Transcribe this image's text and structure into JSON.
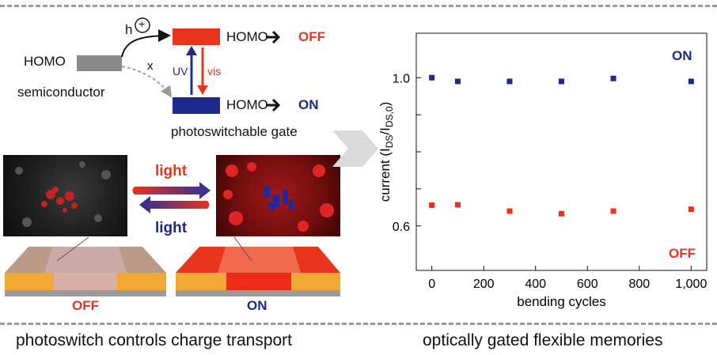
{
  "left_panel": {
    "h_label": "h",
    "plus_symbol": "+",
    "homo_semi": "HOMO",
    "semiconductor": "semiconductor",
    "x_label": "x",
    "uv_label": "UV",
    "vis_label": "vis",
    "homo_top": "HOMO",
    "off_word": "OFF",
    "homo_bottom": "HOMO",
    "on_word": "ON",
    "photoswitchable_gate": "photoswitchable gate",
    "light_top": "light",
    "light_bottom": "light",
    "device_off": "OFF",
    "device_on": "ON",
    "caption": "photoswitch controls charge transport",
    "colors": {
      "red": "#e8341c",
      "blue": "#1a2a8a",
      "gray": "#8a8a8a"
    }
  },
  "right_panel": {
    "caption": "optically gated flexible memories"
  },
  "chart_data": {
    "type": "scatter",
    "xlabel": "bending cycles",
    "ylabel_parts": [
      "current (I",
      "DS",
      "/I",
      "DS,0",
      ")"
    ],
    "xlim": [
      -60,
      1060
    ],
    "ylim": [
      0.48,
      1.12
    ],
    "xticks": [
      0,
      200,
      400,
      600,
      800,
      1000
    ],
    "xtick_labels": [
      "0",
      "200",
      "400",
      "600",
      "800",
      "1,000"
    ],
    "yticks": [
      0.6,
      0.7,
      0.8,
      0.9,
      1.0
    ],
    "ytick_labels": [
      "0.6",
      "",
      "",
      "",
      "1.0"
    ],
    "series": [
      {
        "name": "ON",
        "color": "#1a2a8a",
        "x": [
          0,
          100,
          300,
          500,
          700,
          1000
        ],
        "y": [
          1.0,
          0.99,
          0.99,
          0.99,
          0.998,
          0.99
        ]
      },
      {
        "name": "OFF",
        "color": "#e8341c",
        "x": [
          0,
          100,
          300,
          500,
          700,
          1000
        ],
        "y": [
          0.656,
          0.657,
          0.64,
          0.633,
          0.64,
          0.645
        ]
      }
    ]
  }
}
